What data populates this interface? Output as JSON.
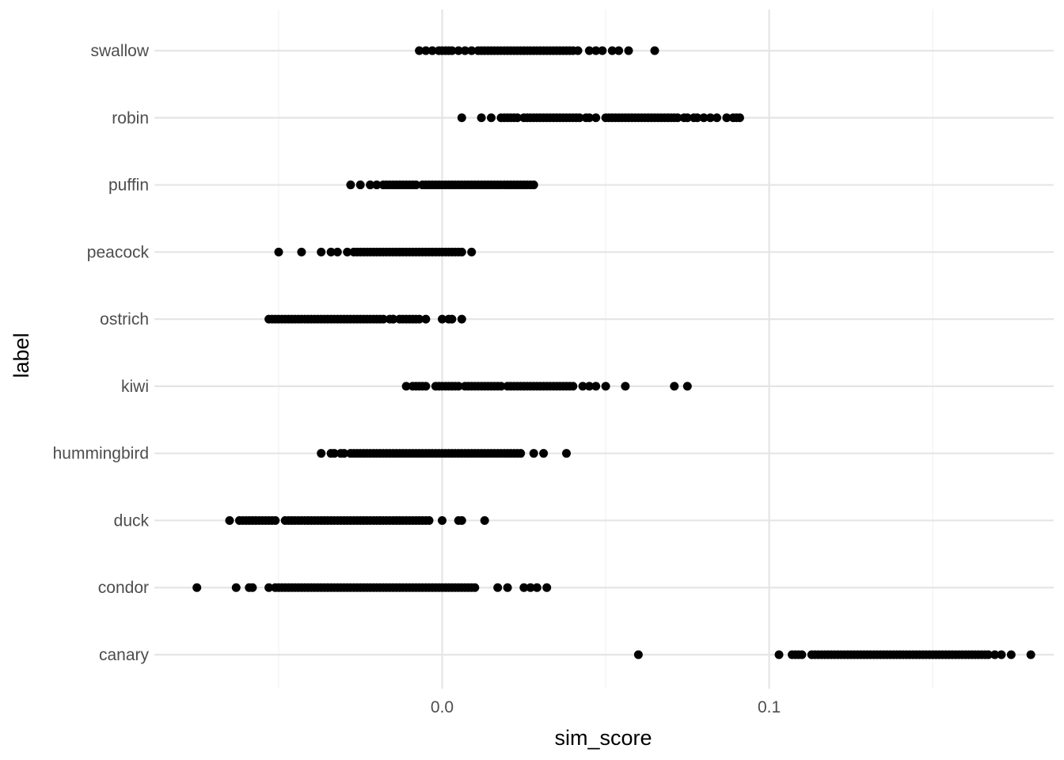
{
  "chart_data": {
    "type": "scatter",
    "title": "",
    "xlabel": "sim_score",
    "ylabel": "label",
    "xlim": [
      -0.088,
      0.187
    ],
    "x_ticks": [
      0.0,
      0.1
    ],
    "x_tick_labels": [
      "0.0",
      "0.1"
    ],
    "x_minor_ticks": [
      -0.05,
      0.05,
      0.15
    ],
    "grid": true,
    "legend": "none",
    "point_color": "#000000",
    "categories": [
      "canary",
      "condor",
      "duck",
      "hummingbird",
      "kiwi",
      "ostrich",
      "peacock",
      "puffin",
      "robin",
      "swallow"
    ],
    "series": [
      {
        "label": "swallow",
        "values": [
          -0.007,
          -0.005,
          -0.003,
          -0.001,
          0.0,
          0.001,
          0.002,
          0.003,
          0.005,
          0.007,
          0.009,
          0.011,
          0.012,
          0.013,
          0.014,
          0.015,
          0.016,
          0.017,
          0.018,
          0.019,
          0.02,
          0.021,
          0.022,
          0.023,
          0.024,
          0.025,
          0.026,
          0.027,
          0.028,
          0.029,
          0.03,
          0.031,
          0.032,
          0.033,
          0.034,
          0.035,
          0.036,
          0.037,
          0.038,
          0.039,
          0.04,
          0.0415,
          0.045,
          0.047,
          0.049,
          0.052,
          0.054,
          0.057,
          0.065
        ]
      },
      {
        "label": "robin",
        "values": [
          0.006,
          0.012,
          0.015,
          0.018,
          0.019,
          0.02,
          0.021,
          0.022,
          0.023,
          0.025,
          0.026,
          0.027,
          0.028,
          0.029,
          0.03,
          0.031,
          0.032,
          0.033,
          0.034,
          0.035,
          0.036,
          0.037,
          0.038,
          0.039,
          0.04,
          0.041,
          0.042,
          0.044,
          0.045,
          0.047,
          0.05,
          0.051,
          0.052,
          0.053,
          0.054,
          0.055,
          0.056,
          0.057,
          0.058,
          0.059,
          0.06,
          0.061,
          0.062,
          0.063,
          0.064,
          0.065,
          0.066,
          0.067,
          0.068,
          0.069,
          0.07,
          0.071,
          0.072,
          0.074,
          0.075,
          0.077,
          0.078,
          0.08,
          0.082,
          0.084,
          0.087,
          0.089,
          0.09,
          0.091
        ]
      },
      {
        "label": "puffin",
        "values": [
          -0.028,
          -0.025,
          -0.022,
          -0.02,
          -0.018,
          -0.017,
          -0.016,
          -0.015,
          -0.014,
          -0.013,
          -0.012,
          -0.011,
          -0.01,
          -0.009,
          -0.008,
          -0.006,
          -0.005,
          -0.004,
          -0.003,
          -0.002,
          -0.001,
          0.0,
          0.001,
          0.002,
          0.003,
          0.004,
          0.005,
          0.006,
          0.007,
          0.008,
          0.009,
          0.01,
          0.011,
          0.012,
          0.013,
          0.014,
          0.015,
          0.016,
          0.017,
          0.018,
          0.019,
          0.02,
          0.021,
          0.022,
          0.023,
          0.024,
          0.025,
          0.026,
          0.027,
          0.028
        ]
      },
      {
        "label": "peacock",
        "values": [
          -0.05,
          -0.043,
          -0.037,
          -0.034,
          -0.032,
          -0.029,
          -0.027,
          -0.026,
          -0.025,
          -0.024,
          -0.023,
          -0.022,
          -0.021,
          -0.02,
          -0.019,
          -0.018,
          -0.017,
          -0.016,
          -0.015,
          -0.014,
          -0.013,
          -0.012,
          -0.011,
          -0.01,
          -0.009,
          -0.008,
          -0.007,
          -0.006,
          -0.005,
          -0.004,
          -0.003,
          -0.002,
          -0.001,
          0.0,
          0.001,
          0.002,
          0.003,
          0.004,
          0.005,
          0.006,
          0.009
        ]
      },
      {
        "label": "ostrich",
        "values": [
          -0.053,
          -0.052,
          -0.051,
          -0.05,
          -0.049,
          -0.048,
          -0.047,
          -0.046,
          -0.045,
          -0.044,
          -0.043,
          -0.042,
          -0.041,
          -0.04,
          -0.039,
          -0.038,
          -0.037,
          -0.036,
          -0.035,
          -0.034,
          -0.033,
          -0.032,
          -0.031,
          -0.03,
          -0.029,
          -0.028,
          -0.027,
          -0.026,
          -0.025,
          -0.024,
          -0.023,
          -0.022,
          -0.021,
          -0.02,
          -0.019,
          -0.018,
          -0.016,
          -0.015,
          -0.015,
          -0.013,
          -0.012,
          -0.011,
          -0.01,
          -0.009,
          -0.008,
          -0.007,
          -0.005,
          0.0,
          0.002,
          0.003,
          0.006
        ]
      },
      {
        "label": "kiwi",
        "values": [
          -0.011,
          -0.009,
          -0.008,
          -0.007,
          -0.006,
          -0.005,
          -0.002,
          -0.001,
          0.0,
          0.001,
          0.002,
          0.003,
          0.004,
          0.005,
          0.007,
          0.008,
          0.009,
          0.01,
          0.011,
          0.012,
          0.013,
          0.014,
          0.015,
          0.016,
          0.017,
          0.018,
          0.02,
          0.021,
          0.022,
          0.023,
          0.024,
          0.025,
          0.026,
          0.027,
          0.028,
          0.029,
          0.03,
          0.031,
          0.032,
          0.033,
          0.034,
          0.035,
          0.036,
          0.037,
          0.038,
          0.039,
          0.04,
          0.043,
          0.045,
          0.047,
          0.05,
          0.056,
          0.071,
          0.075
        ]
      },
      {
        "label": "hummingbird",
        "values": [
          -0.037,
          -0.034,
          -0.033,
          -0.031,
          -0.03,
          -0.028,
          -0.027,
          -0.026,
          -0.025,
          -0.024,
          -0.023,
          -0.022,
          -0.021,
          -0.02,
          -0.019,
          -0.018,
          -0.017,
          -0.016,
          -0.015,
          -0.014,
          -0.013,
          -0.012,
          -0.011,
          -0.01,
          -0.009,
          -0.008,
          -0.007,
          -0.006,
          -0.005,
          -0.004,
          -0.003,
          -0.002,
          -0.001,
          0.0,
          0.001,
          0.002,
          0.003,
          0.004,
          0.005,
          0.006,
          0.007,
          0.008,
          0.009,
          0.01,
          0.011,
          0.012,
          0.013,
          0.014,
          0.015,
          0.016,
          0.017,
          0.018,
          0.019,
          0.02,
          0.021,
          0.022,
          0.023,
          0.024,
          0.028,
          0.031,
          0.038
        ]
      },
      {
        "label": "duck",
        "values": [
          -0.065,
          -0.062,
          -0.061,
          -0.06,
          -0.059,
          -0.058,
          -0.057,
          -0.056,
          -0.055,
          -0.054,
          -0.053,
          -0.052,
          -0.051,
          -0.048,
          -0.047,
          -0.046,
          -0.045,
          -0.044,
          -0.043,
          -0.042,
          -0.041,
          -0.04,
          -0.039,
          -0.038,
          -0.037,
          -0.036,
          -0.035,
          -0.034,
          -0.033,
          -0.032,
          -0.031,
          -0.03,
          -0.029,
          -0.028,
          -0.027,
          -0.026,
          -0.025,
          -0.024,
          -0.023,
          -0.022,
          -0.021,
          -0.02,
          -0.019,
          -0.018,
          -0.017,
          -0.016,
          -0.015,
          -0.014,
          -0.013,
          -0.012,
          -0.011,
          -0.01,
          -0.009,
          -0.008,
          -0.007,
          -0.006,
          -0.005,
          -0.004,
          0.0,
          0.005,
          0.006,
          0.013
        ]
      },
      {
        "label": "condor",
        "values": [
          -0.075,
          -0.063,
          -0.059,
          -0.058,
          -0.053,
          -0.051,
          -0.05,
          -0.049,
          -0.048,
          -0.047,
          -0.046,
          -0.045,
          -0.044,
          -0.043,
          -0.042,
          -0.041,
          -0.04,
          -0.039,
          -0.038,
          -0.037,
          -0.036,
          -0.035,
          -0.034,
          -0.033,
          -0.032,
          -0.031,
          -0.03,
          -0.029,
          -0.028,
          -0.027,
          -0.026,
          -0.025,
          -0.024,
          -0.023,
          -0.022,
          -0.021,
          -0.02,
          -0.019,
          -0.018,
          -0.017,
          -0.016,
          -0.015,
          -0.014,
          -0.013,
          -0.012,
          -0.011,
          -0.01,
          -0.009,
          -0.008,
          -0.007,
          -0.006,
          -0.005,
          -0.004,
          -0.003,
          -0.002,
          -0.001,
          0.0,
          0.001,
          0.002,
          0.003,
          0.004,
          0.005,
          0.006,
          0.007,
          0.008,
          0.009,
          0.01,
          0.017,
          0.02,
          0.025,
          0.027,
          0.029,
          0.032
        ]
      },
      {
        "label": "canary",
        "values": [
          0.06,
          0.103,
          0.107,
          0.108,
          0.109,
          0.11,
          0.113,
          0.114,
          0.115,
          0.116,
          0.117,
          0.118,
          0.119,
          0.12,
          0.121,
          0.122,
          0.123,
          0.124,
          0.125,
          0.126,
          0.127,
          0.128,
          0.129,
          0.13,
          0.131,
          0.132,
          0.133,
          0.134,
          0.135,
          0.136,
          0.137,
          0.138,
          0.139,
          0.14,
          0.141,
          0.142,
          0.143,
          0.144,
          0.145,
          0.146,
          0.147,
          0.148,
          0.149,
          0.15,
          0.151,
          0.152,
          0.153,
          0.154,
          0.155,
          0.156,
          0.157,
          0.158,
          0.159,
          0.16,
          0.161,
          0.162,
          0.163,
          0.164,
          0.165,
          0.166,
          0.167,
          0.169,
          0.171,
          0.174,
          0.18
        ]
      }
    ]
  }
}
